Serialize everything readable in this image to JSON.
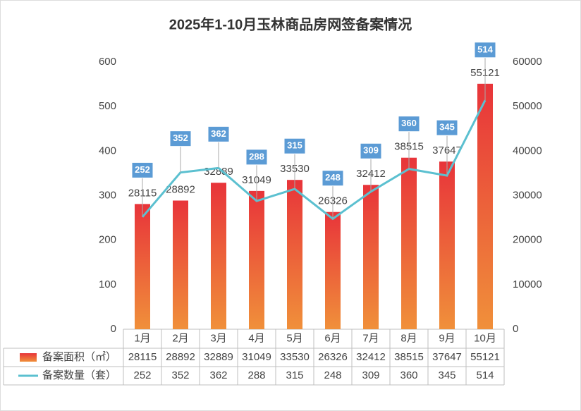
{
  "chart_data": {
    "type": "bar-line",
    "title": "2025年1-10月玉林商品房网签备案情况",
    "categories": [
      "1月",
      "2月",
      "3月",
      "4月",
      "5月",
      "6月",
      "7月",
      "8月",
      "9月",
      "10月"
    ],
    "series": [
      {
        "name": "备案面积（㎡）",
        "type": "bar",
        "axis": "y2",
        "color": "#e8343a",
        "values": [
          28115,
          28892,
          32889,
          31049,
          33530,
          26326,
          32412,
          38515,
          37647,
          55121
        ]
      },
      {
        "name": "备案数量（套）",
        "type": "line",
        "axis": "y",
        "color": "#5bc0d0",
        "values": [
          252,
          352,
          362,
          288,
          315,
          248,
          309,
          360,
          345,
          514
        ]
      }
    ],
    "ylim": [
      0,
      600
    ],
    "yticks": [
      0,
      100,
      200,
      300,
      400,
      500,
      600
    ],
    "y2lim": [
      0,
      60000
    ],
    "y2ticks": [
      0,
      10000,
      20000,
      30000,
      40000,
      50000,
      60000
    ],
    "grid": false
  }
}
